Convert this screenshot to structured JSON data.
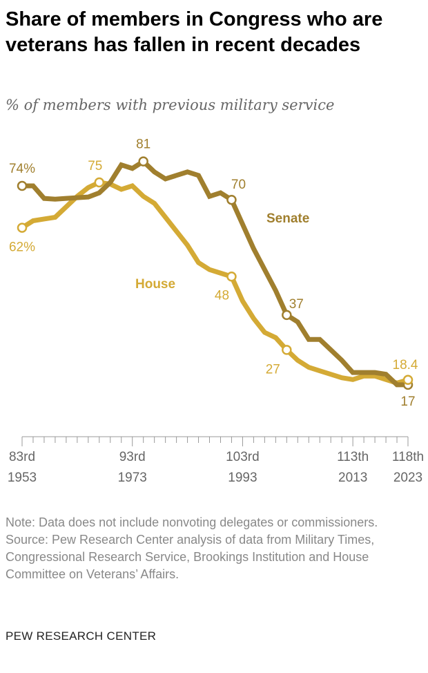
{
  "title": "Share of members in Congress who are veterans has fallen in recent decades",
  "subtitle": "% of members with previous military service",
  "note": "Note: Data does not include nonvoting delegates or commissioners.",
  "source": "Source: Pew Research Center analysis of data from Military Times, Congressional Research Service, Brookings Institution and House Committee on Veterans’ Affairs.",
  "brand": "PEW RESEARCH CENTER",
  "chart_data": {
    "type": "line",
    "x": [
      83,
      84,
      85,
      86,
      87,
      88,
      89,
      90,
      91,
      92,
      93,
      94,
      95,
      96,
      97,
      98,
      99,
      100,
      101,
      102,
      103,
      104,
      105,
      106,
      107,
      108,
      109,
      110,
      111,
      112,
      113,
      114,
      115,
      116,
      117,
      118
    ],
    "xlim": [
      83,
      118
    ],
    "ylim": [
      0,
      85
    ],
    "grid": false,
    "x_ticks": [
      {
        "x": 83,
        "label": "83rd",
        "year": "1953"
      },
      {
        "x": 93,
        "label": "93rd",
        "year": "1973"
      },
      {
        "x": 103,
        "label": "103rd",
        "year": "1993"
      },
      {
        "x": 113,
        "label": "113th",
        "year": "2013"
      },
      {
        "x": 118,
        "label": "118th",
        "year": "2023"
      }
    ],
    "series": [
      {
        "name": "Senate",
        "color": "#a07f2e",
        "values": [
          74,
          74,
          70.4,
          70.2,
          70.4,
          70.6,
          70.8,
          72,
          75,
          80,
          79,
          81,
          78,
          76,
          77,
          78,
          77,
          71,
          72,
          70,
          63,
          56,
          50,
          44,
          37,
          35,
          30,
          30,
          27,
          24,
          20.5,
          20.5,
          20.5,
          20,
          17,
          17
        ],
        "labels": [
          {
            "x": 83,
            "text": "74%"
          },
          {
            "x": 94,
            "text": "81"
          },
          {
            "x": 102,
            "text": "70"
          },
          {
            "x": 107,
            "text": "37"
          },
          {
            "x": 118,
            "text": "17"
          }
        ]
      },
      {
        "name": "House",
        "color": "#d4aa35",
        "values": [
          62,
          64,
          64.5,
          65,
          68,
          71,
          73.5,
          75,
          74.5,
          73,
          74,
          71,
          69,
          65,
          61,
          57,
          52,
          50,
          49,
          48,
          41,
          36,
          32,
          30.5,
          27,
          24,
          22,
          21,
          20,
          19,
          18.5,
          19.5,
          19.5,
          18.5,
          17.5,
          18.4
        ],
        "labels": [
          {
            "x": 83,
            "text": "62%"
          },
          {
            "x": 90,
            "text": "75"
          },
          {
            "x": 102,
            "text": "48"
          },
          {
            "x": 107,
            "text": "27"
          },
          {
            "x": 118,
            "text": "18.4"
          }
        ]
      }
    ]
  }
}
